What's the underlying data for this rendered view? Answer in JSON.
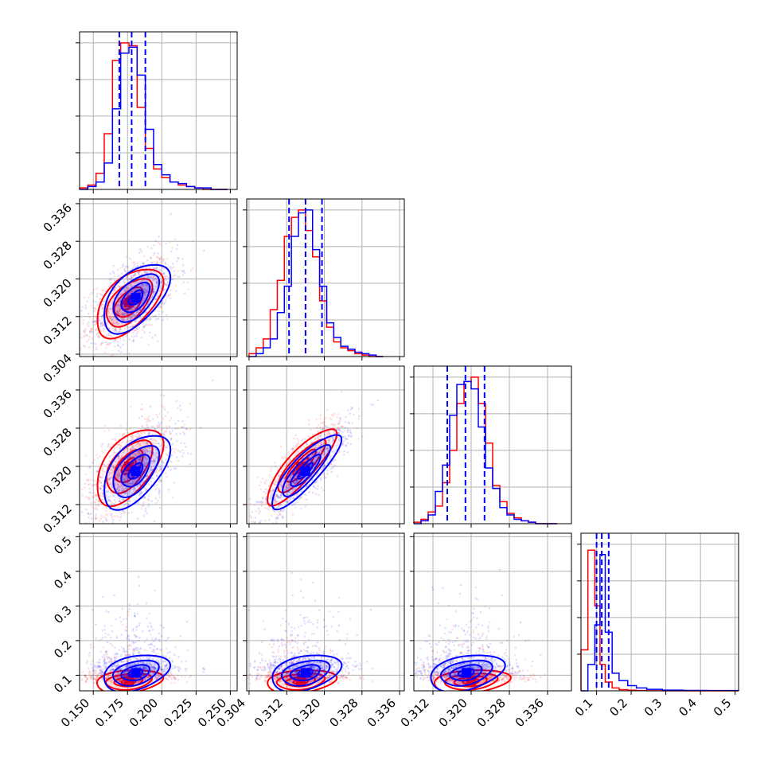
{
  "colors": {
    "series_a": "#0000ff",
    "series_b": "#ff0000",
    "quantile_lines": "#0000ff",
    "grid": "#b0b0b0"
  },
  "chart_data": {
    "type": "corner",
    "num_parameters": 4,
    "legend": "none",
    "grid": true,
    "quantile_line_style": "dashed",
    "series": [
      {
        "color": "#0000ff",
        "center": [
          0.181,
          0.316,
          0.319,
          0.115
        ],
        "std": [
          0.0115,
          0.0035,
          0.0037,
          0.028
        ],
        "correlation": [
          [
            1.0,
            0.55,
            0.55,
            0.35
          ],
          [
            0.55,
            1.0,
            0.85,
            0.35
          ],
          [
            0.55,
            0.85,
            1.0,
            0.35
          ],
          [
            0.35,
            0.35,
            0.35,
            1.0
          ]
        ],
        "quantiles": [
          [
            0.169,
            0.178,
            0.188
          ],
          [
            0.3125,
            0.316,
            0.3195
          ],
          [
            0.315,
            0.3188,
            0.3228
          ],
          [
            0.1,
            0.115,
            0.135
          ]
        ]
      },
      {
        "color": "#ff0000",
        "center": [
          0.176,
          0.315,
          0.32,
          0.09
        ],
        "std": [
          0.0115,
          0.0035,
          0.0038,
          0.018
        ],
        "correlation": [
          [
            1.0,
            0.55,
            0.55,
            0.25
          ],
          [
            0.55,
            1.0,
            0.85,
            0.25
          ],
          [
            0.55,
            0.85,
            1.0,
            0.25
          ],
          [
            0.25,
            0.25,
            0.25,
            1.0
          ]
        ]
      }
    ],
    "axes": [
      {
        "range": [
          0.14,
          0.255
        ],
        "ticks": [
          0.15,
          0.175,
          0.2,
          0.225,
          0.25
        ],
        "tick_labels": [
          "0.150",
          "0.175",
          "0.200",
          "0.225",
          "0.250"
        ]
      },
      {
        "range": [
          0.3035,
          0.337
        ],
        "ticks": [
          0.304,
          0.312,
          0.32,
          0.328,
          0.336
        ],
        "tick_labels": [
          "0.304",
          "0.312",
          "0.320",
          "0.328",
          "0.336"
        ]
      },
      {
        "range": [
          0.308,
          0.341
        ],
        "ticks": [
          0.312,
          0.32,
          0.328,
          0.336
        ],
        "tick_labels": [
          "0.312",
          "0.320",
          "0.328",
          "0.336"
        ]
      },
      {
        "range": [
          0.055,
          0.51
        ],
        "ticks": [
          0.1,
          0.2,
          0.3,
          0.4,
          0.5
        ],
        "tick_labels": [
          "0.1",
          "0.2",
          "0.3",
          "0.4",
          "0.5"
        ]
      }
    ],
    "histograms": [
      {
        "bin_edges": [
          0.14,
          0.146,
          0.152,
          0.158,
          0.164,
          0.17,
          0.176,
          0.182,
          0.188,
          0.194,
          0.2,
          0.206,
          0.212,
          0.218,
          0.224,
          0.23,
          0.236,
          0.242,
          0.248
        ],
        "series_a": [
          0.0,
          0.02,
          0.05,
          0.18,
          0.55,
          0.93,
          0.97,
          0.78,
          0.41,
          0.17,
          0.1,
          0.05,
          0.04,
          0.02,
          0.01,
          0.01,
          0.0,
          0.0
        ],
        "series_b": [
          0.01,
          0.03,
          0.11,
          0.38,
          0.88,
          1.0,
          0.98,
          0.56,
          0.28,
          0.14,
          0.08,
          0.05,
          0.03,
          0.02,
          0.01,
          0.0,
          0.0,
          0.0
        ]
      },
      {
        "bin_edges": [
          0.304,
          0.3055,
          0.307,
          0.3085,
          0.31,
          0.3115,
          0.313,
          0.3145,
          0.316,
          0.3175,
          0.319,
          0.3205,
          0.322,
          0.3235,
          0.325,
          0.3265,
          0.328,
          0.3295,
          0.331,
          0.3325
        ],
        "series_a": [
          0.0,
          0.02,
          0.06,
          0.12,
          0.3,
          0.48,
          0.82,
          0.98,
          1.0,
          0.73,
          0.48,
          0.23,
          0.13,
          0.07,
          0.05,
          0.03,
          0.02,
          0.01,
          0.0
        ],
        "series_b": [
          0.02,
          0.06,
          0.12,
          0.32,
          0.52,
          0.82,
          0.95,
          1.0,
          0.86,
          0.68,
          0.38,
          0.2,
          0.1,
          0.06,
          0.04,
          0.02,
          0.01,
          0.0,
          0.0
        ]
      },
      {
        "bin_edges": [
          0.308,
          0.3095,
          0.311,
          0.3125,
          0.314,
          0.3155,
          0.317,
          0.3185,
          0.32,
          0.3215,
          0.323,
          0.3245,
          0.326,
          0.3275,
          0.329,
          0.3305,
          0.332,
          0.3335,
          0.335,
          0.3365,
          0.338
        ],
        "series_a": [
          0.0,
          0.02,
          0.06,
          0.22,
          0.4,
          0.74,
          0.95,
          0.97,
          0.92,
          0.66,
          0.38,
          0.24,
          0.11,
          0.06,
          0.03,
          0.02,
          0.01,
          0.0,
          0.0,
          0.0
        ],
        "series_b": [
          0.01,
          0.03,
          0.08,
          0.12,
          0.28,
          0.5,
          0.82,
          0.97,
          1.0,
          0.82,
          0.55,
          0.26,
          0.15,
          0.07,
          0.04,
          0.02,
          0.01,
          0.0,
          0.0,
          0.0
        ]
      },
      {
        "bin_edges": [
          0.055,
          0.075,
          0.095,
          0.11,
          0.125,
          0.145,
          0.165,
          0.19,
          0.215,
          0.245,
          0.29,
          0.35,
          0.42,
          0.51
        ],
        "series_a": [
          0.0,
          0.18,
          0.45,
          0.93,
          0.4,
          0.12,
          0.07,
          0.035,
          0.02,
          0.01,
          0.005,
          0.003,
          0.002
        ],
        "series_b": [
          0.28,
          0.96,
          0.58,
          0.18,
          0.06,
          0.02,
          0.008,
          0.004,
          0.002,
          0.001,
          0.0,
          0.0,
          0.0
        ]
      }
    ]
  }
}
